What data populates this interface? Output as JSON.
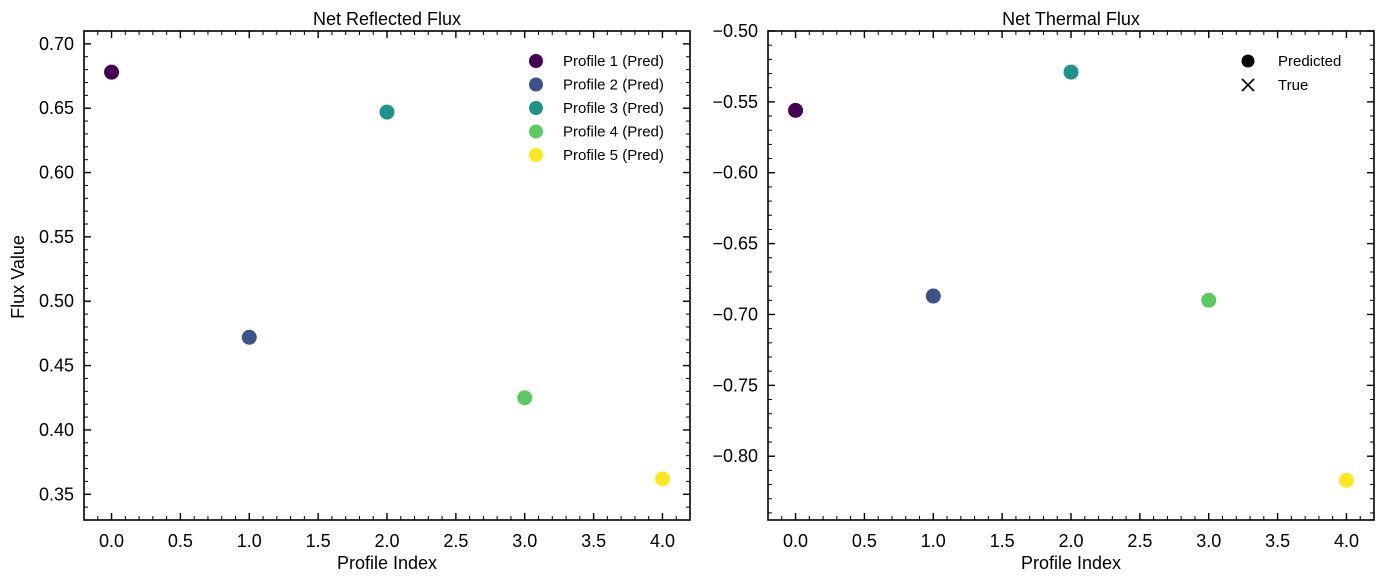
{
  "chart_data": [
    {
      "type": "scatter",
      "title": "Net Reflected Flux",
      "xlabel": "Profile Index",
      "ylabel": "Flux Value",
      "xlim": [
        -0.2,
        4.2
      ],
      "ylim": [
        0.33,
        0.71
      ],
      "xticks": [
        0.0,
        0.5,
        1.0,
        1.5,
        2.0,
        2.5,
        3.0,
        3.5,
        4.0
      ],
      "yticks": [
        0.35,
        0.4,
        0.45,
        0.5,
        0.55,
        0.6,
        0.65,
        0.7
      ],
      "xtick_labels": [
        "0.0",
        "0.5",
        "1.0",
        "1.5",
        "2.0",
        "2.5",
        "3.0",
        "3.5",
        "4.0"
      ],
      "ytick_labels": [
        "0.35",
        "0.40",
        "0.45",
        "0.50",
        "0.55",
        "0.60",
        "0.65",
        "0.70"
      ],
      "grid": false,
      "legend_position": "top-right",
      "series": [
        {
          "name": "Profile 1 (Pred)",
          "color": "#440154",
          "x": [
            0
          ],
          "y": [
            0.678
          ]
        },
        {
          "name": "Profile 2 (Pred)",
          "color": "#3b528b",
          "x": [
            1
          ],
          "y": [
            0.472
          ]
        },
        {
          "name": "Profile 3 (Pred)",
          "color": "#21918c",
          "x": [
            2
          ],
          "y": [
            0.647
          ]
        },
        {
          "name": "Profile 4 (Pred)",
          "color": "#5ec962",
          "x": [
            3
          ],
          "y": [
            0.425
          ]
        },
        {
          "name": "Profile 5 (Pred)",
          "color": "#fde725",
          "x": [
            4
          ],
          "y": [
            0.362
          ]
        }
      ]
    },
    {
      "type": "scatter",
      "title": "Net Thermal Flux",
      "xlabel": "Profile Index",
      "ylabel": "",
      "xlim": [
        -0.2,
        4.2
      ],
      "ylim": [
        -0.845,
        -0.5
      ],
      "xticks": [
        0.0,
        0.5,
        1.0,
        1.5,
        2.0,
        2.5,
        3.0,
        3.5,
        4.0
      ],
      "yticks": [
        -0.8,
        -0.75,
        -0.7,
        -0.65,
        -0.6,
        -0.55,
        -0.5
      ],
      "xtick_labels": [
        "0.0",
        "0.5",
        "1.0",
        "1.5",
        "2.0",
        "2.5",
        "3.0",
        "3.5",
        "4.0"
      ],
      "ytick_labels": [
        "−0.80",
        "−0.75",
        "−0.70",
        "−0.65",
        "−0.60",
        "−0.55",
        "−0.50"
      ],
      "grid": false,
      "legend_position": "top-right",
      "legend": [
        {
          "label": "Predicted",
          "marker": "circle",
          "color": "#000000"
        },
        {
          "label": "True",
          "marker": "x",
          "color": "#000000"
        }
      ],
      "series": [
        {
          "color": "#440154",
          "x": [
            0
          ],
          "y": [
            -0.556
          ]
        },
        {
          "color": "#3b528b",
          "x": [
            1
          ],
          "y": [
            -0.687
          ]
        },
        {
          "color": "#21918c",
          "x": [
            2
          ],
          "y": [
            -0.529
          ]
        },
        {
          "color": "#5ec962",
          "x": [
            3
          ],
          "y": [
            -0.69
          ]
        },
        {
          "color": "#fde725",
          "x": [
            4
          ],
          "y": [
            -0.817
          ]
        }
      ]
    }
  ]
}
